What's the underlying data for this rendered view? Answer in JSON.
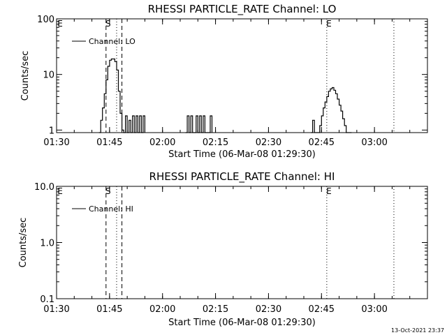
{
  "footer_timestamp": "13-Oct-2021 23:37",
  "chart_data": [
    {
      "type": "line",
      "title": "RHESSI PARTICLE_RATE Channel: LO",
      "xlabel": "Start Time (06-Mar-08 01:29:30)",
      "ylabel": "Counts/sec",
      "y_scale": "log",
      "ylim": [
        0.9,
        100
      ],
      "y_ticks": [
        {
          "value": 1,
          "label": "1"
        },
        {
          "value": 10,
          "label": "10"
        },
        {
          "value": 100,
          "label": "100"
        }
      ],
      "xlim": [
        "01:30",
        "03:15"
      ],
      "x_ticks": [
        "01:30",
        "01:45",
        "02:00",
        "02:15",
        "02:30",
        "02:45",
        "03:00"
      ],
      "legend": "top-left",
      "series": [
        {
          "name": "Channel: LO",
          "x": [
            "01:42:00",
            "01:42:30",
            "01:43:00",
            "01:43:30",
            "01:44:00",
            "01:44:30",
            "01:45:00",
            "01:45:30",
            "01:46:00",
            "01:46:30",
            "01:47:00",
            "01:47:30",
            "01:48:00",
            "01:48:30",
            "01:49:00",
            "01:49:30",
            "01:50:00",
            "01:50:30",
            "01:51:00",
            "01:51:30",
            "01:52:00",
            "01:52:30",
            "01:53:00",
            "01:53:30",
            "01:54:00",
            "01:54:30",
            "01:55:00"
          ],
          "values": [
            0.9,
            1.5,
            2.5,
            4.5,
            8,
            14,
            18,
            19,
            19,
            17,
            12,
            5,
            2,
            1,
            0.9,
            1.8,
            0.9,
            1.5,
            0.9,
            1.8,
            0.9,
            1.8,
            0.9,
            1.8,
            0.9,
            1.8,
            0.9
          ]
        },
        {
          "name": "Channel: LO",
          "x": [
            "02:06:30",
            "02:07:00",
            "02:07:30",
            "02:08:00",
            "02:08:30",
            "02:09:00",
            "02:09:30",
            "02:10:00",
            "02:10:30",
            "02:11:00",
            "02:11:30",
            "02:12:00",
            "02:12:30",
            "02:13:00",
            "02:13:30",
            "02:14:00"
          ],
          "values": [
            0.9,
            1.8,
            0.9,
            1.8,
            0.9,
            0.9,
            1.8,
            0.9,
            1.8,
            0.9,
            1.8,
            0.9,
            0.9,
            0.9,
            1.8,
            0.9
          ]
        },
        {
          "name": "Channel: LO",
          "x": [
            "02:42:00",
            "02:42:30",
            "02:43:00",
            "02:44:00",
            "02:44:30",
            "02:45:00",
            "02:45:30",
            "02:46:00",
            "02:46:30",
            "02:47:00",
            "02:47:30",
            "02:48:00",
            "02:48:30",
            "02:49:00",
            "02:49:30",
            "02:50:00",
            "02:50:30",
            "02:51:00",
            "02:51:30",
            "02:52:00",
            "02:52:30",
            "02:53:00",
            "02:53:30"
          ],
          "values": [
            0.9,
            1.5,
            0.9,
            0.9,
            1.2,
            1.8,
            2.5,
            3.2,
            4,
            5,
            5.5,
            5.8,
            5.2,
            4.5,
            3.6,
            2.8,
            2.2,
            1.6,
            1.2,
            0.9,
            0.9,
            0.9,
            0.9
          ]
        }
      ],
      "markers": [
        {
          "time": "01:44:00",
          "style": "dashed",
          "label": "S"
        },
        {
          "time": "01:48:30",
          "style": "dashed",
          "label": ""
        },
        {
          "time": "01:47:00",
          "style": "dotted",
          "label": ""
        },
        {
          "time": "02:46:30",
          "style": "dotted",
          "label": "E"
        },
        {
          "time": "03:05:30",
          "style": "dotted",
          "label": ""
        }
      ],
      "corner_labels": [
        "E"
      ]
    },
    {
      "type": "line",
      "title": "RHESSI PARTICLE_RATE Channel: HI",
      "xlabel": "Start Time (06-Mar-08 01:29:30)",
      "ylabel": "Counts/sec",
      "y_scale": "log",
      "ylim": [
        0.1,
        10
      ],
      "y_ticks": [
        {
          "value": 0.1,
          "label": "0.1"
        },
        {
          "value": 1,
          "label": "1.0"
        },
        {
          "value": 10,
          "label": "10.0"
        }
      ],
      "xlim": [
        "01:30",
        "03:15"
      ],
      "x_ticks": [
        "01:30",
        "01:45",
        "02:00",
        "02:15",
        "02:30",
        "02:45",
        "03:00"
      ],
      "legend": "top-left",
      "series": [
        {
          "name": "Channel: HI",
          "x": [],
          "values": []
        }
      ],
      "markers": [
        {
          "time": "01:44:00",
          "style": "dashed",
          "label": "S"
        },
        {
          "time": "01:48:30",
          "style": "dashed",
          "label": ""
        },
        {
          "time": "01:47:00",
          "style": "dotted",
          "label": ""
        },
        {
          "time": "02:46:30",
          "style": "dotted",
          "label": "E"
        },
        {
          "time": "03:05:30",
          "style": "dotted",
          "label": ""
        }
      ],
      "corner_labels": [
        "E"
      ]
    }
  ]
}
